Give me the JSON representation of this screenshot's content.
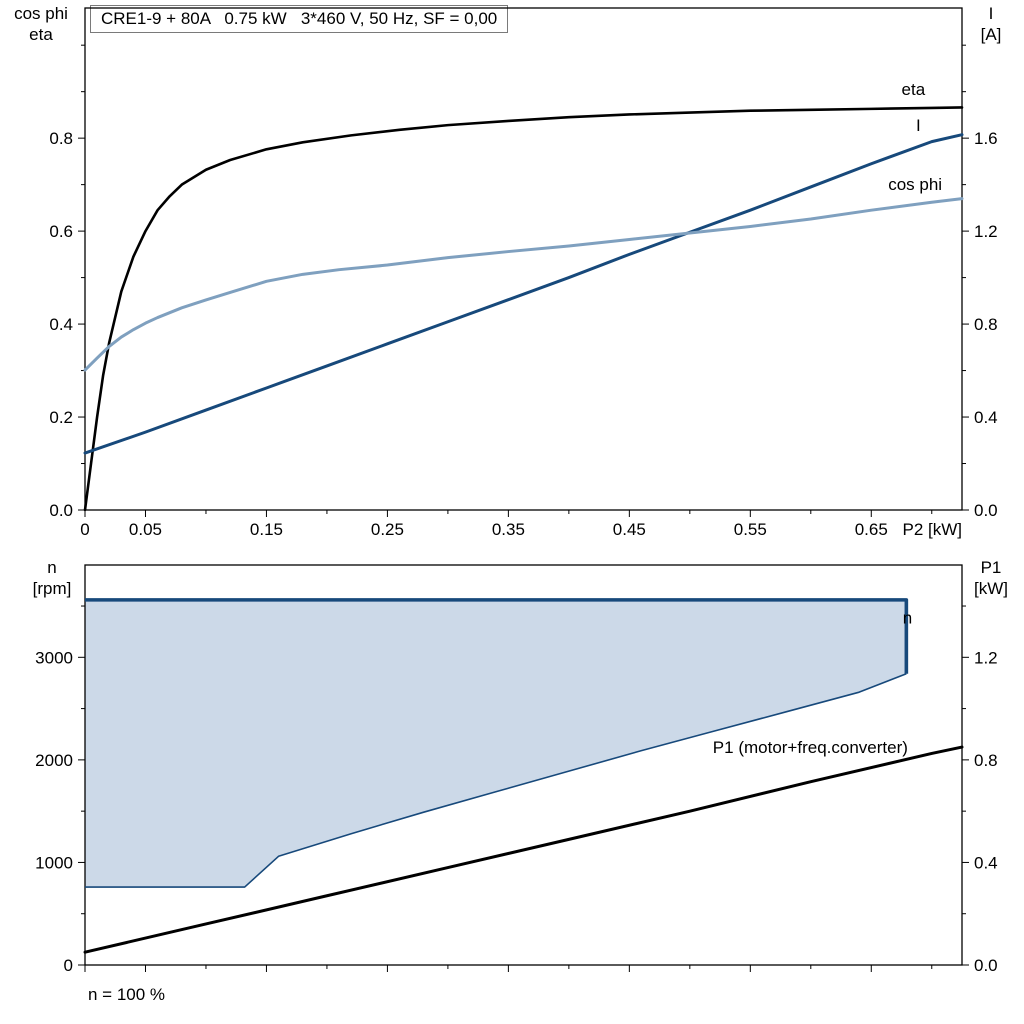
{
  "footnote": "n = 100 %",
  "axis_labels": {
    "top_left": [
      "cos phi",
      "eta"
    ],
    "top_right": [
      "I",
      "[A]"
    ],
    "bottom_left": [
      "n",
      "[rpm]"
    ],
    "bottom_right": [
      "P1",
      "[kW]"
    ]
  },
  "colors": {
    "black": "#000000",
    "dark_blue": "#17497b",
    "light_blue": "#7fa0bf",
    "region_fill": "#ccd9e8",
    "frame": "#000000"
  },
  "chart_data": [
    {
      "type": "line",
      "title": "CRE1-9 + 80A   0.75 kW   3*460 V, 50 Hz, SF = 0,00",
      "x_axis": {
        "label": "P2 [kW]",
        "range": [
          0,
          0.725
        ],
        "ticks": [
          0,
          0.05,
          0.15,
          0.25,
          0.35,
          0.45,
          0.55,
          0.65
        ],
        "tick_labels": [
          "0",
          "0.05",
          "0.15",
          "0.25",
          "0.35",
          "0.45",
          "0.55",
          "0.65"
        ],
        "minor_step": 0.05
      },
      "left_axis": {
        "name": "cos phi / eta",
        "range": [
          0,
          1.08
        ],
        "ticks": [
          0,
          0.2,
          0.4,
          0.6,
          0.8
        ],
        "tick_labels": [
          "0.0",
          "0.2",
          "0.4",
          "0.6",
          "0.8"
        ],
        "minor_step": 0.1
      },
      "right_axis": {
        "name": "I [A]",
        "range": [
          0,
          2.16
        ],
        "ticks": [
          0,
          0.4,
          0.8,
          1.2,
          1.6
        ],
        "tick_labels": [
          "0.0",
          "0.4",
          "0.8",
          "1.2",
          "1.6"
        ],
        "minor_step": 0.2
      },
      "series": [
        {
          "name": "eta",
          "axis": "left",
          "color_key": "black",
          "width": 2.6,
          "points": [
            [
              0,
              0
            ],
            [
              0.005,
              0.1
            ],
            [
              0.01,
              0.2
            ],
            [
              0.015,
              0.29
            ],
            [
              0.02,
              0.36
            ],
            [
              0.03,
              0.47
            ],
            [
              0.04,
              0.545
            ],
            [
              0.05,
              0.6
            ],
            [
              0.06,
              0.645
            ],
            [
              0.07,
              0.675
            ],
            [
              0.08,
              0.7
            ],
            [
              0.1,
              0.732
            ],
            [
              0.12,
              0.753
            ],
            [
              0.15,
              0.776
            ],
            [
              0.18,
              0.791
            ],
            [
              0.22,
              0.806
            ],
            [
              0.26,
              0.818
            ],
            [
              0.3,
              0.828
            ],
            [
              0.35,
              0.837
            ],
            [
              0.4,
              0.845
            ],
            [
              0.45,
              0.851
            ],
            [
              0.5,
              0.855
            ],
            [
              0.55,
              0.859
            ],
            [
              0.6,
              0.861
            ],
            [
              0.65,
              0.863
            ],
            [
              0.7,
              0.865
            ],
            [
              0.725,
              0.866
            ]
          ],
          "label": {
            "text": "eta",
            "x": 0.675,
            "y": 0.893,
            "anchor": "start"
          }
        },
        {
          "name": "I",
          "axis": "right",
          "color_key": "dark_blue",
          "width": 3,
          "points": [
            [
              0,
              0.245
            ],
            [
              0.05,
              0.335
            ],
            [
              0.1,
              0.43
            ],
            [
              0.15,
              0.525
            ],
            [
              0.2,
              0.62
            ],
            [
              0.25,
              0.715
            ],
            [
              0.3,
              0.81
            ],
            [
              0.35,
              0.905
            ],
            [
              0.4,
              1.0
            ],
            [
              0.45,
              1.1
            ],
            [
              0.5,
              1.195
            ],
            [
              0.55,
              1.29
            ],
            [
              0.6,
              1.39
            ],
            [
              0.65,
              1.49
            ],
            [
              0.7,
              1.585
            ],
            [
              0.725,
              1.615
            ]
          ],
          "label": {
            "text": "I",
            "x": 0.687,
            "y": 1.63,
            "anchor": "start"
          }
        },
        {
          "name": "cos phi",
          "axis": "left",
          "color_key": "light_blue",
          "width": 3,
          "points": [
            [
              0,
              0.301
            ],
            [
              0.01,
              0.327
            ],
            [
              0.02,
              0.352
            ],
            [
              0.03,
              0.372
            ],
            [
              0.04,
              0.388
            ],
            [
              0.05,
              0.402
            ],
            [
              0.06,
              0.414
            ],
            [
              0.08,
              0.435
            ],
            [
              0.1,
              0.452
            ],
            [
              0.12,
              0.468
            ],
            [
              0.15,
              0.492
            ],
            [
              0.18,
              0.507
            ],
            [
              0.21,
              0.517
            ],
            [
              0.25,
              0.527
            ],
            [
              0.3,
              0.543
            ],
            [
              0.35,
              0.556
            ],
            [
              0.4,
              0.568
            ],
            [
              0.45,
              0.582
            ],
            [
              0.5,
              0.596
            ],
            [
              0.55,
              0.61
            ],
            [
              0.6,
              0.626
            ],
            [
              0.65,
              0.645
            ],
            [
              0.7,
              0.662
            ],
            [
              0.725,
              0.67
            ]
          ],
          "label": {
            "text": "cos phi",
            "x": 0.664,
            "y": 0.688,
            "anchor": "start"
          }
        }
      ]
    },
    {
      "type": "line",
      "title": "",
      "x_axis": {
        "label": "",
        "range": [
          0,
          0.725
        ],
        "ticks": [
          0,
          0.05,
          0.15,
          0.25,
          0.35,
          0.45,
          0.55,
          0.65
        ],
        "tick_labels": null,
        "minor_step": 0.05
      },
      "left_axis": {
        "name": "n [rpm]",
        "range": [
          0,
          3900
        ],
        "ticks": [
          0,
          1000,
          2000,
          3000
        ],
        "tick_labels": [
          "0",
          "1000",
          "2000",
          "3000"
        ],
        "minor_step": 500
      },
      "right_axis": {
        "name": "P1 [kW]",
        "range": [
          0,
          1.56
        ],
        "ticks": [
          0,
          0.4,
          0.8,
          1.2
        ],
        "tick_labels": [
          "0.0",
          "0.4",
          "0.8",
          "1.2"
        ],
        "minor_step": 0.2
      },
      "region": {
        "fill_key": "region_fill",
        "stroke_key": "dark_blue",
        "upper": {
          "points": [
            [
              0,
              3560
            ],
            [
              0.679,
              3560
            ],
            [
              0.679,
              2840
            ]
          ],
          "width": 3.6,
          "label": {
            "text": "n",
            "x": 0.676,
            "y": 3330,
            "anchor": "start"
          }
        },
        "lower": {
          "points": [
            [
              0,
              760
            ],
            [
              0.132,
              760
            ],
            [
              0.16,
              1060
            ],
            [
              0.22,
              1280
            ],
            [
              0.28,
              1490
            ],
            [
              0.34,
              1690
            ],
            [
              0.4,
              1890
            ],
            [
              0.46,
              2090
            ],
            [
              0.52,
              2280
            ],
            [
              0.58,
              2470
            ],
            [
              0.64,
              2660
            ],
            [
              0.679,
              2840
            ]
          ],
          "width": 1.6
        }
      },
      "series": [
        {
          "name": "P1",
          "axis": "right",
          "color_key": "black",
          "width": 3,
          "points": [
            [
              0,
              0.05
            ],
            [
              0.1,
              0.16
            ],
            [
              0.2,
              0.27
            ],
            [
              0.3,
              0.38
            ],
            [
              0.4,
              0.49
            ],
            [
              0.5,
              0.6
            ],
            [
              0.6,
              0.715
            ],
            [
              0.7,
              0.825
            ],
            [
              0.725,
              0.85
            ]
          ],
          "label": {
            "text": "P1 (motor+freq.converter)",
            "x": 0.519,
            "y": 0.826,
            "anchor": "start"
          }
        }
      ]
    }
  ]
}
